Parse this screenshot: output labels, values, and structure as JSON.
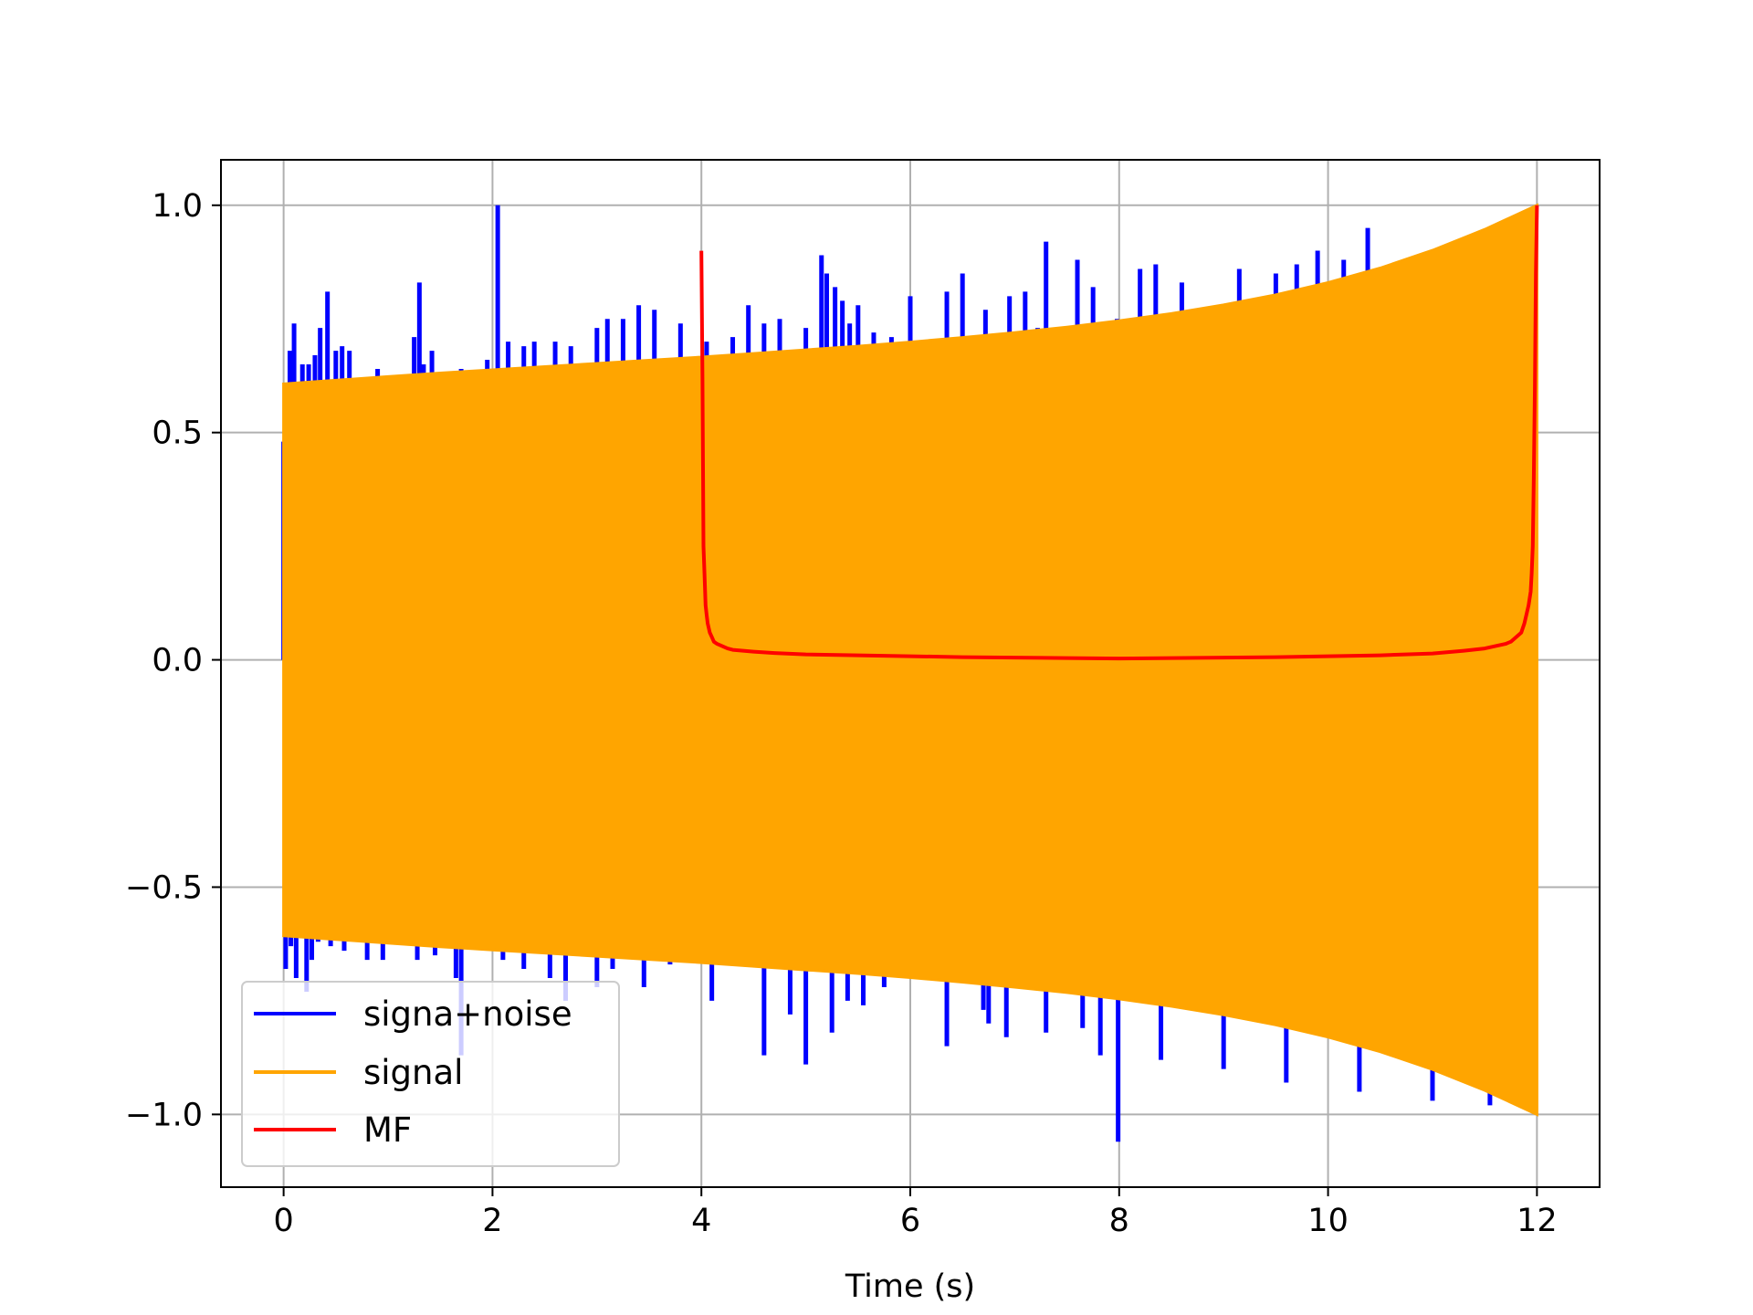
{
  "chart_data": {
    "type": "line",
    "title": "",
    "xlabel": "Time (s)",
    "ylabel": "",
    "xlim": [
      -0.6,
      12.6
    ],
    "ylim": [
      -1.16,
      1.1
    ],
    "xticks": [
      0,
      2,
      4,
      6,
      8,
      10,
      12
    ],
    "xtick_labels": [
      "0",
      "2",
      "4",
      "6",
      "8",
      "10",
      "12"
    ],
    "yticks": [
      -1.0,
      -0.5,
      0.0,
      0.5,
      1.0
    ],
    "ytick_labels": [
      "−1.0",
      "−0.5",
      "0.0",
      "0.5",
      "1.0"
    ],
    "grid": true,
    "legend_position": "lower-left",
    "series": [
      {
        "name": "signa+noise",
        "color": "#0000ff",
        "style": "spikes",
        "x": [
          0.0,
          0.06,
          0.1,
          0.18,
          0.24,
          0.3,
          0.35,
          0.42,
          0.5,
          0.56,
          0.63,
          0.7,
          0.8,
          0.9,
          1.05,
          1.25,
          1.3,
          1.34,
          1.42,
          1.55,
          1.7,
          1.95,
          2.05,
          2.15,
          2.3,
          2.4,
          2.6,
          2.75,
          3.0,
          3.1,
          3.25,
          3.4,
          3.55,
          3.8,
          4.05,
          4.3,
          4.45,
          4.6,
          4.75,
          5.0,
          5.15,
          5.2,
          5.28,
          5.35,
          5.42,
          5.5,
          5.65,
          5.82,
          6.0,
          6.35,
          6.5,
          6.72,
          6.95,
          7.1,
          7.22,
          7.3,
          7.6,
          7.75,
          7.98,
          8.2,
          8.35,
          8.6,
          9.15,
          9.5,
          9.7,
          9.9,
          10.15,
          10.38,
          10.9,
          11.2,
          11.6,
          11.85,
          0.02,
          0.07,
          0.12,
          0.16,
          0.22,
          0.27,
          0.33,
          0.45,
          0.58,
          0.8,
          0.95,
          1.1,
          1.28,
          1.45,
          1.55,
          1.65,
          1.7,
          1.85,
          2.1,
          2.3,
          2.55,
          2.7,
          3.0,
          3.15,
          3.3,
          3.45,
          3.7,
          4.1,
          4.6,
          4.85,
          5.0,
          5.25,
          5.4,
          5.55,
          5.75,
          6.35,
          6.7,
          6.75,
          6.92,
          7.3,
          7.65,
          7.82,
          7.99,
          8.4,
          9.0,
          9.6,
          10.3,
          11.0,
          11.55
        ],
        "y": [
          0.48,
          0.68,
          0.74,
          0.65,
          0.65,
          0.67,
          0.73,
          0.81,
          0.68,
          0.69,
          0.68,
          0.62,
          0.61,
          0.64,
          0.62,
          0.71,
          0.83,
          0.65,
          0.68,
          0.63,
          0.64,
          0.66,
          1.0,
          0.7,
          0.69,
          0.7,
          0.7,
          0.69,
          0.73,
          0.75,
          0.75,
          0.78,
          0.77,
          0.74,
          0.7,
          0.71,
          0.78,
          0.74,
          0.75,
          0.73,
          0.89,
          0.85,
          0.82,
          0.79,
          0.74,
          0.78,
          0.72,
          0.71,
          0.8,
          0.81,
          0.85,
          0.77,
          0.8,
          0.81,
          0.73,
          0.92,
          0.88,
          0.82,
          0.75,
          0.86,
          0.87,
          0.83,
          0.86,
          0.85,
          0.87,
          0.9,
          0.88,
          0.95,
          0.89,
          0.92,
          0.95,
          0.98,
          -0.68,
          -0.63,
          -0.7,
          -0.6,
          -0.73,
          -0.66,
          -0.62,
          -0.63,
          -0.64,
          -0.66,
          -0.66,
          -0.62,
          -0.66,
          -0.65,
          -0.62,
          -0.7,
          -0.87,
          -0.63,
          -0.66,
          -0.68,
          -0.7,
          -0.75,
          -0.72,
          -0.68,
          -0.65,
          -0.72,
          -0.67,
          -0.75,
          -0.87,
          -0.78,
          -0.89,
          -0.82,
          -0.75,
          -0.76,
          -0.72,
          -0.85,
          -0.77,
          -0.8,
          -0.83,
          -0.82,
          -0.81,
          -0.87,
          -1.06,
          -0.88,
          -0.9,
          -0.93,
          -0.95,
          -0.97,
          -0.98
        ]
      },
      {
        "name": "signal",
        "color": "#ffa500",
        "style": "envelope",
        "x": [
          0,
          0.5,
          1,
          1.5,
          2,
          2.5,
          3,
          3.5,
          4,
          4.5,
          5,
          5.5,
          6,
          6.5,
          7,
          7.5,
          8,
          8.5,
          9,
          9.5,
          10,
          10.5,
          11,
          11.5,
          12
        ],
        "upper": [
          0.607,
          0.615,
          0.623,
          0.631,
          0.638,
          0.645,
          0.652,
          0.659,
          0.666,
          0.674,
          0.682,
          0.69,
          0.699,
          0.709,
          0.72,
          0.732,
          0.746,
          0.762,
          0.781,
          0.803,
          0.83,
          0.862,
          0.901,
          0.947,
          1.0
        ],
        "lower": [
          -0.607,
          -0.615,
          -0.623,
          -0.631,
          -0.638,
          -0.645,
          -0.652,
          -0.659,
          -0.666,
          -0.674,
          -0.682,
          -0.69,
          -0.699,
          -0.709,
          -0.72,
          -0.732,
          -0.746,
          -0.762,
          -0.781,
          -0.803,
          -0.83,
          -0.862,
          -0.901,
          -0.947,
          -1.0
        ]
      },
      {
        "name": "MF",
        "color": "#ff0000",
        "style": "line",
        "x": [
          4.0,
          4.01,
          4.02,
          4.03,
          4.04,
          4.05,
          4.06,
          4.08,
          4.1,
          4.12,
          4.15,
          4.2,
          4.25,
          4.3,
          4.4,
          4.5,
          4.7,
          5.0,
          5.5,
          6.0,
          6.5,
          7.0,
          7.5,
          8.0,
          8.5,
          9.0,
          9.5,
          10.0,
          10.5,
          11.0,
          11.3,
          11.5,
          11.6,
          11.7,
          11.75,
          11.8,
          11.85,
          11.88,
          11.9,
          11.92,
          11.94,
          11.95,
          11.96,
          11.97,
          11.98,
          11.99,
          12.0
        ],
        "y": [
          0.9,
          0.62,
          0.25,
          0.19,
          0.12,
          0.1,
          0.08,
          0.06,
          0.05,
          0.04,
          0.035,
          0.03,
          0.025,
          0.022,
          0.02,
          0.018,
          0.015,
          0.012,
          0.01,
          0.008,
          0.006,
          0.005,
          0.004,
          0.003,
          0.004,
          0.005,
          0.006,
          0.008,
          0.01,
          0.014,
          0.02,
          0.025,
          0.03,
          0.035,
          0.04,
          0.05,
          0.06,
          0.08,
          0.1,
          0.12,
          0.15,
          0.19,
          0.25,
          0.4,
          0.6,
          0.85,
          1.0
        ]
      }
    ]
  }
}
